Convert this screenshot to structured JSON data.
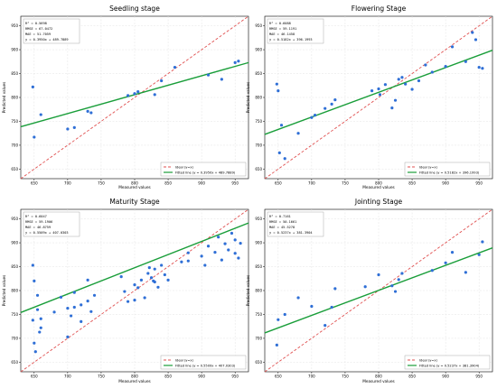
{
  "chart_data": [
    {
      "type": "scatter",
      "title": "Seedling stage",
      "xlabel": "Measured values",
      "ylabel": "Predicted values",
      "xlim": [
        630,
        970
      ],
      "ylim": [
        630,
        970
      ],
      "xticks": [
        "650",
        "700",
        "750",
        "800",
        "850",
        "900",
        "950"
      ],
      "yticks": [
        "650",
        "700",
        "750",
        "800",
        "850",
        "900",
        "950"
      ],
      "grid": true,
      "legend_position": "bottom-right",
      "legend": [
        "Ideal (y=x)",
        "Fitted line (y = 0.3950x + 489.7889)"
      ],
      "stats": [
        "R² = 0.5698",
        "RMSE = 67.0472",
        "MAE = 51.7059",
        "y = 0.3950x + 489.7889"
      ],
      "fit": {
        "slope": 0.395,
        "intercept": 489.7889
      },
      "x": [
        648,
        650,
        660,
        700,
        710,
        730,
        735,
        790,
        800,
        805,
        830,
        840,
        860,
        910,
        930,
        950,
        955
      ],
      "y": [
        822,
        717,
        764,
        734,
        737,
        771,
        768,
        804,
        808,
        812,
        806,
        835,
        863,
        847,
        838,
        873,
        876
      ]
    },
    {
      "type": "scatter",
      "title": "Flowering Stage",
      "xlabel": "Measured values",
      "ylabel": "Predicted values",
      "xlim": [
        630,
        970
      ],
      "ylim": [
        630,
        970
      ],
      "xticks": [
        "650",
        "700",
        "750",
        "800",
        "850",
        "900",
        "950"
      ],
      "yticks": [
        "650",
        "700",
        "750",
        "800",
        "850",
        "900",
        "950"
      ],
      "grid": true,
      "legend_position": "bottom-right",
      "legend": [
        "Ideal (y=x)",
        "Fitted line (y = 0.5182x + 396.1993)"
      ],
      "stats": [
        "R² = 0.6088",
        "RMSE = 59.1191",
        "MAE = 46.1458",
        "y = 0.5182x + 396.1993"
      ],
      "fit": {
        "slope": 0.5182,
        "intercept": 396.1993
      },
      "x": [
        648,
        650,
        652,
        655,
        660,
        680,
        700,
        705,
        720,
        730,
        735,
        790,
        800,
        802,
        810,
        820,
        825,
        830,
        835,
        840,
        850,
        860,
        870,
        880,
        900,
        910,
        930,
        940,
        945,
        950,
        955
      ],
      "y": [
        828,
        814,
        684,
        742,
        672,
        725,
        758,
        763,
        777,
        786,
        795,
        814,
        818,
        806,
        827,
        778,
        794,
        838,
        842,
        828,
        817,
        835,
        868,
        853,
        865,
        906,
        875,
        936,
        921,
        863,
        861
      ]
    },
    {
      "type": "scatter",
      "title": "Maturity Stage",
      "xlabel": "Measured values",
      "ylabel": "Predicted values",
      "xlim": [
        630,
        970
      ],
      "ylim": [
        630,
        970
      ],
      "xticks": [
        "650",
        "700",
        "750",
        "800",
        "850",
        "900",
        "950"
      ],
      "yticks": [
        "650",
        "700",
        "750",
        "800",
        "850",
        "900",
        "950"
      ],
      "grid": true,
      "legend_position": "bottom-right",
      "legend": [
        "Ideal (y=x)",
        "Fitted line (y = 0.5509x + 407.0303)"
      ],
      "stats": [
        "R² = 0.6047",
        "RMSE = 59.1906",
        "MAE = 46.8759",
        "y = 0.5509x + 407.0303"
      ],
      "fit": {
        "slope": 0.5509,
        "intercept": 407.0303
      },
      "x": [
        648,
        648,
        650,
        650,
        652,
        655,
        655,
        658,
        660,
        660,
        680,
        690,
        700,
        700,
        705,
        710,
        710,
        720,
        720,
        730,
        730,
        735,
        740,
        780,
        785,
        790,
        800,
        800,
        805,
        810,
        815,
        820,
        822,
        825,
        828,
        830,
        830,
        835,
        840,
        845,
        850,
        870,
        880,
        880,
        900,
        905,
        910,
        920,
        925,
        930,
        935,
        940,
        945,
        950,
        950,
        955,
        958
      ],
      "y": [
        853,
        738,
        820,
        690,
        672,
        760,
        790,
        713,
        722,
        741,
        755,
        786,
        763,
        703,
        747,
        765,
        796,
        735,
        770,
        778,
        822,
        756,
        790,
        829,
        798,
        777,
        812,
        780,
        806,
        822,
        785,
        836,
        848,
        827,
        820,
        845,
        818,
        807,
        853,
        833,
        822,
        860,
        862,
        879,
        872,
        853,
        893,
        880,
        912,
        864,
        898,
        885,
        920,
        878,
        906,
        868,
        899
      ]
    },
    {
      "type": "scatter",
      "title": "Jointing Stage",
      "xlabel": "Measured values",
      "ylabel": "Predicted values",
      "xlim": [
        630,
        970
      ],
      "ylim": [
        630,
        970
      ],
      "xticks": [
        "650",
        "700",
        "750",
        "800",
        "850",
        "900",
        "950"
      ],
      "yticks": [
        "650",
        "700",
        "750",
        "800",
        "850",
        "900",
        "950"
      ],
      "grid": true,
      "legend_position": "bottom-right",
      "legend": [
        "Ideal (y=x)",
        "Fitted line (y = 0.5237x + 381.3904)"
      ],
      "stats": [
        "R² = 0.7161",
        "RMSE = 50.1661",
        "MAE = 45.5278",
        "y = 0.5237x + 381.3904"
      ],
      "fit": {
        "slope": 0.5237,
        "intercept": 381.3904
      },
      "x": [
        648,
        650,
        660,
        680,
        700,
        720,
        730,
        735,
        780,
        800,
        820,
        825,
        830,
        835,
        880,
        900,
        910,
        930,
        950,
        955
      ],
      "y": [
        686,
        739,
        750,
        785,
        767,
        727,
        765,
        804,
        808,
        833,
        810,
        798,
        823,
        836,
        842,
        858,
        880,
        838,
        875,
        902
      ]
    }
  ]
}
